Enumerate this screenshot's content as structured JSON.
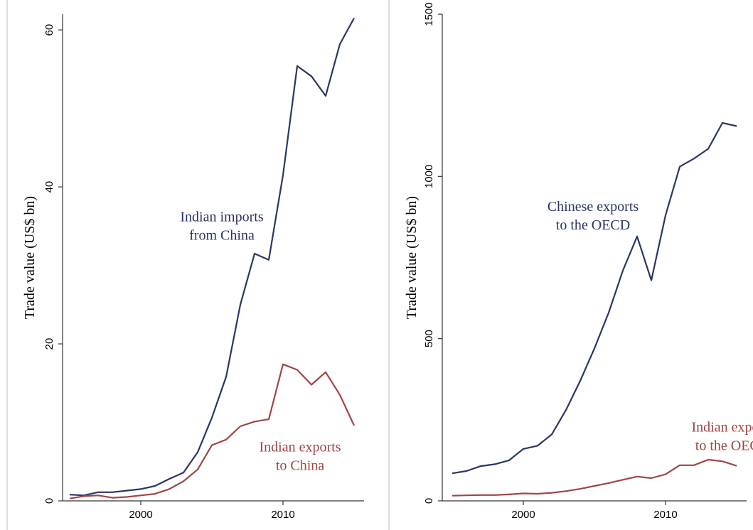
{
  "chart_data": [
    {
      "type": "line",
      "title": "",
      "xlabel": "",
      "ylabel": "Trade value (US$ bn)",
      "xlim": [
        1994.5,
        2015.7
      ],
      "ylim": [
        0,
        62
      ],
      "xticks": [
        2000,
        2010
      ],
      "yticks": [
        0,
        20,
        40,
        60
      ],
      "grid": false,
      "x": [
        1995,
        1996,
        1997,
        1998,
        1999,
        2000,
        2001,
        2002,
        2003,
        2004,
        2005,
        2006,
        2007,
        2008,
        2009,
        2010,
        2011,
        2012,
        2013,
        2014,
        2015
      ],
      "series": [
        {
          "name": "Indian imports from China",
          "color": "#2b3566",
          "values": [
            0.8,
            0.7,
            1.1,
            1.1,
            1.3,
            1.5,
            1.9,
            2.8,
            3.6,
            6.2,
            10.6,
            15.8,
            25.0,
            31.5,
            30.7,
            41.5,
            55.4,
            54.1,
            51.6,
            58.2,
            61.5
          ]
        },
        {
          "name": "Indian exports to China",
          "color": "#a04545",
          "values": [
            0.3,
            0.6,
            0.7,
            0.4,
            0.5,
            0.7,
            0.9,
            1.5,
            2.5,
            4.0,
            7.1,
            7.8,
            9.5,
            10.1,
            10.4,
            17.4,
            16.7,
            14.8,
            16.4,
            13.5,
            9.6
          ]
        }
      ],
      "annotations": [
        {
          "text_lines": [
            "Indian imports",
            "from China"
          ],
          "color": "#2b3566",
          "x": 2005.7,
          "y": 35.6
        },
        {
          "text_lines": [
            "Indian exports",
            "to China"
          ],
          "color": "#a04545",
          "x": 2011.2,
          "y": 6.3
        }
      ]
    },
    {
      "type": "line",
      "title": "",
      "xlabel": "",
      "ylabel": "Trade value (US$ bn)",
      "xlim": [
        1994.3,
        2015.7
      ],
      "ylim": [
        0,
        1500
      ],
      "xticks": [
        2000,
        2010
      ],
      "yticks": [
        0,
        500,
        1000,
        1500
      ],
      "grid": false,
      "x": [
        1995,
        1996,
        1997,
        1998,
        1999,
        2000,
        2001,
        2002,
        2003,
        2004,
        2005,
        2006,
        2007,
        2008,
        2009,
        2010,
        2011,
        2012,
        2013,
        2014,
        2015
      ],
      "series": [
        {
          "name": "Chinese exports to the OECD",
          "color": "#2b3566",
          "values": [
            85,
            92,
            107,
            113,
            125,
            160,
            170,
            205,
            280,
            370,
            470,
            580,
            710,
            815,
            680,
            880,
            1030,
            1055,
            1085,
            1165,
            1155
          ]
        },
        {
          "name": "Indian exports to the OECD",
          "color": "#a04545",
          "values": [
            16,
            17,
            18,
            18,
            20,
            23,
            22,
            25,
            30,
            37,
            46,
            55,
            65,
            75,
            70,
            82,
            110,
            110,
            127,
            122,
            108
          ]
        }
      ],
      "annotations": [
        {
          "text_lines": [
            "Chinese exports",
            "to the OECD"
          ],
          "color": "#2b3566",
          "x": 2004.9,
          "y": 893
        },
        {
          "text_lines": [
            "Indian exports",
            "to the OECD"
          ],
          "color": "#a04545",
          "x": 2014.7,
          "y": 213
        }
      ]
    }
  ]
}
